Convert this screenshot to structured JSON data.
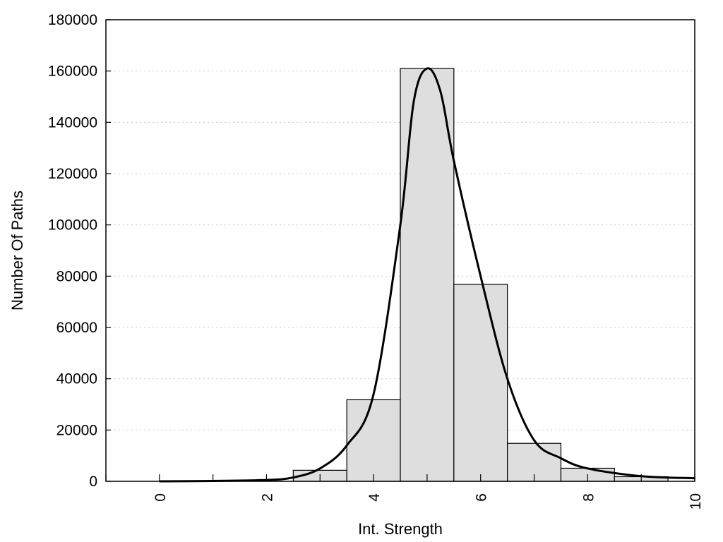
{
  "chart_data": {
    "type": "bar",
    "title": "",
    "xlabel": "Int. Strength",
    "ylabel": "Number Of Paths",
    "xlim": [
      -1,
      10
    ],
    "ylim": [
      0,
      180000
    ],
    "grid": true,
    "x_ticks": [
      0,
      2,
      4,
      6,
      8,
      10
    ],
    "y_ticks": [
      0,
      20000,
      40000,
      60000,
      80000,
      100000,
      120000,
      140000,
      160000,
      180000
    ],
    "bin_width": 1,
    "series": [
      {
        "type": "bar",
        "x": [
          0,
          1,
          2,
          3,
          4,
          5,
          6,
          7,
          8,
          9
        ],
        "values": [
          0,
          0,
          0,
          4300,
          31800,
          161000,
          76800,
          14800,
          5100,
          1800
        ]
      },
      {
        "type": "line",
        "x": [
          0,
          1,
          2,
          2.5,
          3,
          3.5,
          4,
          4.5,
          4.75,
          5,
          5.25,
          5.5,
          6,
          6.5,
          7,
          7.5,
          8,
          9,
          10
        ],
        "values": [
          0,
          150,
          500,
          1500,
          5000,
          14000,
          34000,
          100000,
          148000,
          161000,
          152000,
          125000,
          80000,
          40000,
          16000,
          9000,
          5000,
          2000,
          1200
        ]
      }
    ]
  }
}
